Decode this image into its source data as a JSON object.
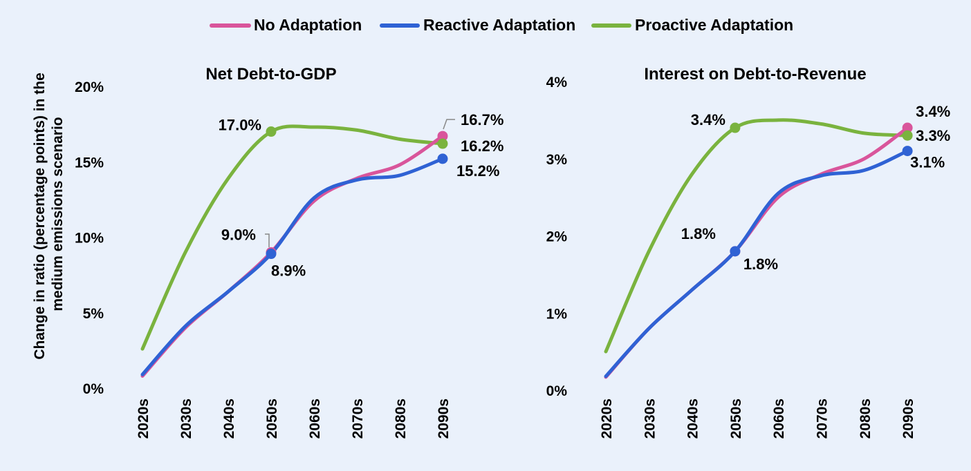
{
  "legend": [
    {
      "name": "No Adaptation",
      "color": "#d9559b"
    },
    {
      "name": "Reactive Adaptation",
      "color": "#2f62d4"
    },
    {
      "name": "Proactive Adaptation",
      "color": "#7ab33e"
    }
  ],
  "ylabel_lines": [
    "Change in ratio (percentage points) in the",
    "medium emissions scenario"
  ],
  "chart_data": [
    {
      "type": "line",
      "title": "Net Debt-to-GDP",
      "categories": [
        "2020s",
        "2030s",
        "2040s",
        "2050s",
        "2060s",
        "2070s",
        "2080s",
        "2090s"
      ],
      "y_ticks": [
        "0%",
        "5%",
        "10%",
        "15%",
        "20%"
      ],
      "ylim": [
        0,
        20
      ],
      "series": [
        {
          "name": "No Adaptation",
          "values": [
            0.8,
            4.0,
            6.4,
            9.0,
            12.4,
            13.9,
            14.8,
            16.7
          ]
        },
        {
          "name": "Reactive Adaptation",
          "values": [
            0.9,
            4.1,
            6.4,
            8.9,
            12.6,
            13.8,
            14.1,
            15.2
          ]
        },
        {
          "name": "Proactive Adaptation",
          "values": [
            2.6,
            9.0,
            13.9,
            17.0,
            17.3,
            17.1,
            16.5,
            16.2
          ]
        }
      ],
      "annotations": [
        {
          "text": "17.0%",
          "series": 2,
          "index": 3
        },
        {
          "text": "9.0%",
          "series": 0,
          "index": 3
        },
        {
          "text": "8.9%",
          "series": 1,
          "index": 3
        },
        {
          "text": "16.7%",
          "series": 0,
          "index": 7
        },
        {
          "text": "16.2%",
          "series": 2,
          "index": 7
        },
        {
          "text": "15.2%",
          "series": 1,
          "index": 7
        }
      ]
    },
    {
      "type": "line",
      "title": "Interest on Debt-to-Revenue",
      "categories": [
        "2020s",
        "2030s",
        "2040s",
        "2050s",
        "2060s",
        "2070s",
        "2080s",
        "2090s"
      ],
      "y_ticks": [
        "0%",
        "1%",
        "2%",
        "3%",
        "4%"
      ],
      "ylim": [
        0,
        4
      ],
      "series": [
        {
          "name": "No Adaptation",
          "values": [
            0.17,
            0.8,
            1.3,
            1.8,
            2.5,
            2.8,
            3.0,
            3.4
          ]
        },
        {
          "name": "Reactive Adaptation",
          "values": [
            0.18,
            0.8,
            1.3,
            1.8,
            2.55,
            2.78,
            2.85,
            3.1
          ]
        },
        {
          "name": "Proactive Adaptation",
          "values": [
            0.5,
            1.8,
            2.8,
            3.4,
            3.5,
            3.45,
            3.33,
            3.3
          ]
        }
      ],
      "annotations": [
        {
          "text": "3.4%",
          "series": 2,
          "index": 3
        },
        {
          "text": "1.8%",
          "series": 0,
          "index": 3
        },
        {
          "text": "1.8%",
          "series": 1,
          "index": 3
        },
        {
          "text": "3.4%",
          "series": 0,
          "index": 7
        },
        {
          "text": "3.3%",
          "series": 2,
          "index": 7
        },
        {
          "text": "3.1%",
          "series": 1,
          "index": 7
        }
      ]
    }
  ]
}
